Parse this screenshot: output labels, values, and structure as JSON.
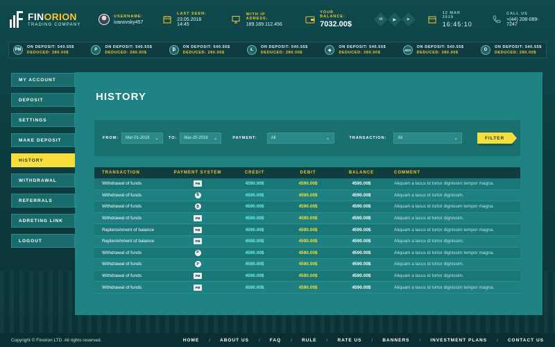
{
  "brand": {
    "name_a": "FIN",
    "name_b": "ORION",
    "subtitle": "TRADING COMPANY"
  },
  "header": {
    "username_label": "USERNAME:",
    "username": "ivanovsky457",
    "last_seen_label": "LAST SEEN:",
    "last_seen": "23.05.2018 14:45",
    "ip_label": "WITH IP ADRESS:",
    "ip": "189.189.112.456",
    "balance_label": "YOUR BALANCE:",
    "balance": "7032.00$",
    "date": "12 MAR 2019",
    "time": "16:45:10",
    "call_label": "CALL US",
    "phone": "+(44) 208-089-7247",
    "socials": [
      "vk-icon",
      "youtube-icon",
      "telegram-icon"
    ]
  },
  "ticker": [
    {
      "coin": "PM",
      "icon": "perfect-money-icon",
      "line1": "ON DEPOSIT: 540.55$",
      "line2": "DEDUCED: 280.00$"
    },
    {
      "coin": "P",
      "icon": "payeer-icon",
      "line1": "ON DEPOSIT: 540.55$",
      "line2": "DEDUCED: 280.00$"
    },
    {
      "coin": "₿",
      "icon": "bitcoin-icon",
      "line1": "ON DEPOSIT: 540.55$",
      "line2": "DEDUCED: 280.00$"
    },
    {
      "coin": "Ł",
      "icon": "litecoin-icon",
      "line1": "ON DEPOSIT: 540.55$",
      "line2": "DEDUCED: 280.00$"
    },
    {
      "coin": "◆",
      "icon": "ethereum-icon",
      "line1": "ON DEPOSIT: 540.55$",
      "line2": "DEDUCED: 280.00$"
    },
    {
      "coin": "ADV",
      "icon": "advcash-icon",
      "line1": "ON DEPOSIT: 540.55$",
      "line2": "DEDUCED: 280.00$"
    },
    {
      "coin": "D",
      "icon": "dash-icon",
      "line1": "ON DEPOSIT: 540.55$",
      "line2": "DEDUCED: 280.00$"
    }
  ],
  "sidebar": {
    "items": [
      {
        "label": "MY ACCOUNT",
        "active": false
      },
      {
        "label": "DEPOSIT",
        "active": false
      },
      {
        "label": "SETTINGS",
        "active": false
      },
      {
        "label": "MAKE DEPOSIT",
        "active": false
      },
      {
        "label": "HISTORY",
        "active": true
      },
      {
        "label": "WITHDRAWAL",
        "active": false
      },
      {
        "label": "REFERRALS",
        "active": false
      },
      {
        "label": "ADRETING LINK",
        "active": false
      },
      {
        "label": "LOGOUT",
        "active": false
      }
    ]
  },
  "page": {
    "title": "HISTORY"
  },
  "filter": {
    "from_label": "FROM:",
    "from_value": "Mar-01-2019",
    "to_label": "TO:",
    "to_value": "Mar-20-2019",
    "payment_label": "PAYMENT:",
    "payment_value": "All",
    "transaction_label": "TRANSACTION:",
    "transaction_value": "All",
    "button": "FILTER"
  },
  "table": {
    "headers": [
      "TRANSACTION",
      "PAYMENT SYSTEM",
      "CREDIT",
      "DEBIT",
      "BALANCE",
      "COMMENT"
    ],
    "rows": [
      {
        "transaction": "Withdrawal of funds",
        "system": "PM",
        "credit": "4590.00$",
        "debit": "4590.00$",
        "balance": "4590.00$",
        "comment": "Aliquam a lacus id tortor dignissim tempor magna."
      },
      {
        "transaction": "Withdrawal of funds",
        "system": "₿",
        "credit": "4590.00$",
        "debit": "4590.00$",
        "balance": "4590.00$",
        "comment": "Aliquam a lacus id tortor dignissim."
      },
      {
        "transaction": "Withdrawal of funds",
        "system": "₿",
        "credit": "4590.00$",
        "debit": "4590.00$",
        "balance": "4590.00$",
        "comment": "Aliquam a lacus id tortor dignissim tempor magna."
      },
      {
        "transaction": "Withdrawal of funds",
        "system": "PM",
        "credit": "4590.00$",
        "debit": "4590.00$",
        "balance": "4590.00$",
        "comment": "Aliquam a lacus id tortor dignissim."
      },
      {
        "transaction": "Replenishment of balance",
        "system": "PM",
        "credit": "4590.00$",
        "debit": "4590.00$",
        "balance": "4590.00$",
        "comment": "Aliquam a lacus id tortor dignissim tempor magna."
      },
      {
        "transaction": "Replenishment of balance",
        "system": "PM",
        "credit": "4590.00$",
        "debit": "4590.00$",
        "balance": "4590.00$",
        "comment": "Aliquam a lacus id tortor dignissim."
      },
      {
        "transaction": "Withdrawal of funds",
        "system": "P",
        "credit": "4590.00$",
        "debit": "4590.00$",
        "balance": "4590.00$",
        "comment": "Aliquam a lacus id tortor dignissim tempor magna."
      },
      {
        "transaction": "Withdrawal of funds",
        "system": "P",
        "credit": "4590.00$",
        "debit": "4590.00$",
        "balance": "4590.00$",
        "comment": "Aliquam a lacus id tortor dignissim."
      },
      {
        "transaction": "Withdrawal of funds",
        "system": "PM",
        "credit": "4590.00$",
        "debit": "4590.00$",
        "balance": "4590.00$",
        "comment": "Aliquam a lacus id tortor dignissim."
      },
      {
        "transaction": "Withdrawal of funds",
        "system": "PM",
        "credit": "4590.00$",
        "debit": "4590.00$",
        "balance": "4590.00$",
        "comment": "Aliquam a lacus id tortor dignissim tempor magna."
      }
    ]
  },
  "footer": {
    "copyright": "Copyright © Finorion LTD. All rights reserved.",
    "nav": [
      "HOME",
      "ABOUT US",
      "FAQ",
      "RULE",
      "RATE US",
      "BANNERS",
      "INVESTMENT PLANS",
      "CONTACT US"
    ]
  },
  "colors": {
    "accent": "#f7de3b",
    "panel": "#1e8382",
    "background": "#0d3b3f",
    "credit": "#6ff0e8"
  }
}
